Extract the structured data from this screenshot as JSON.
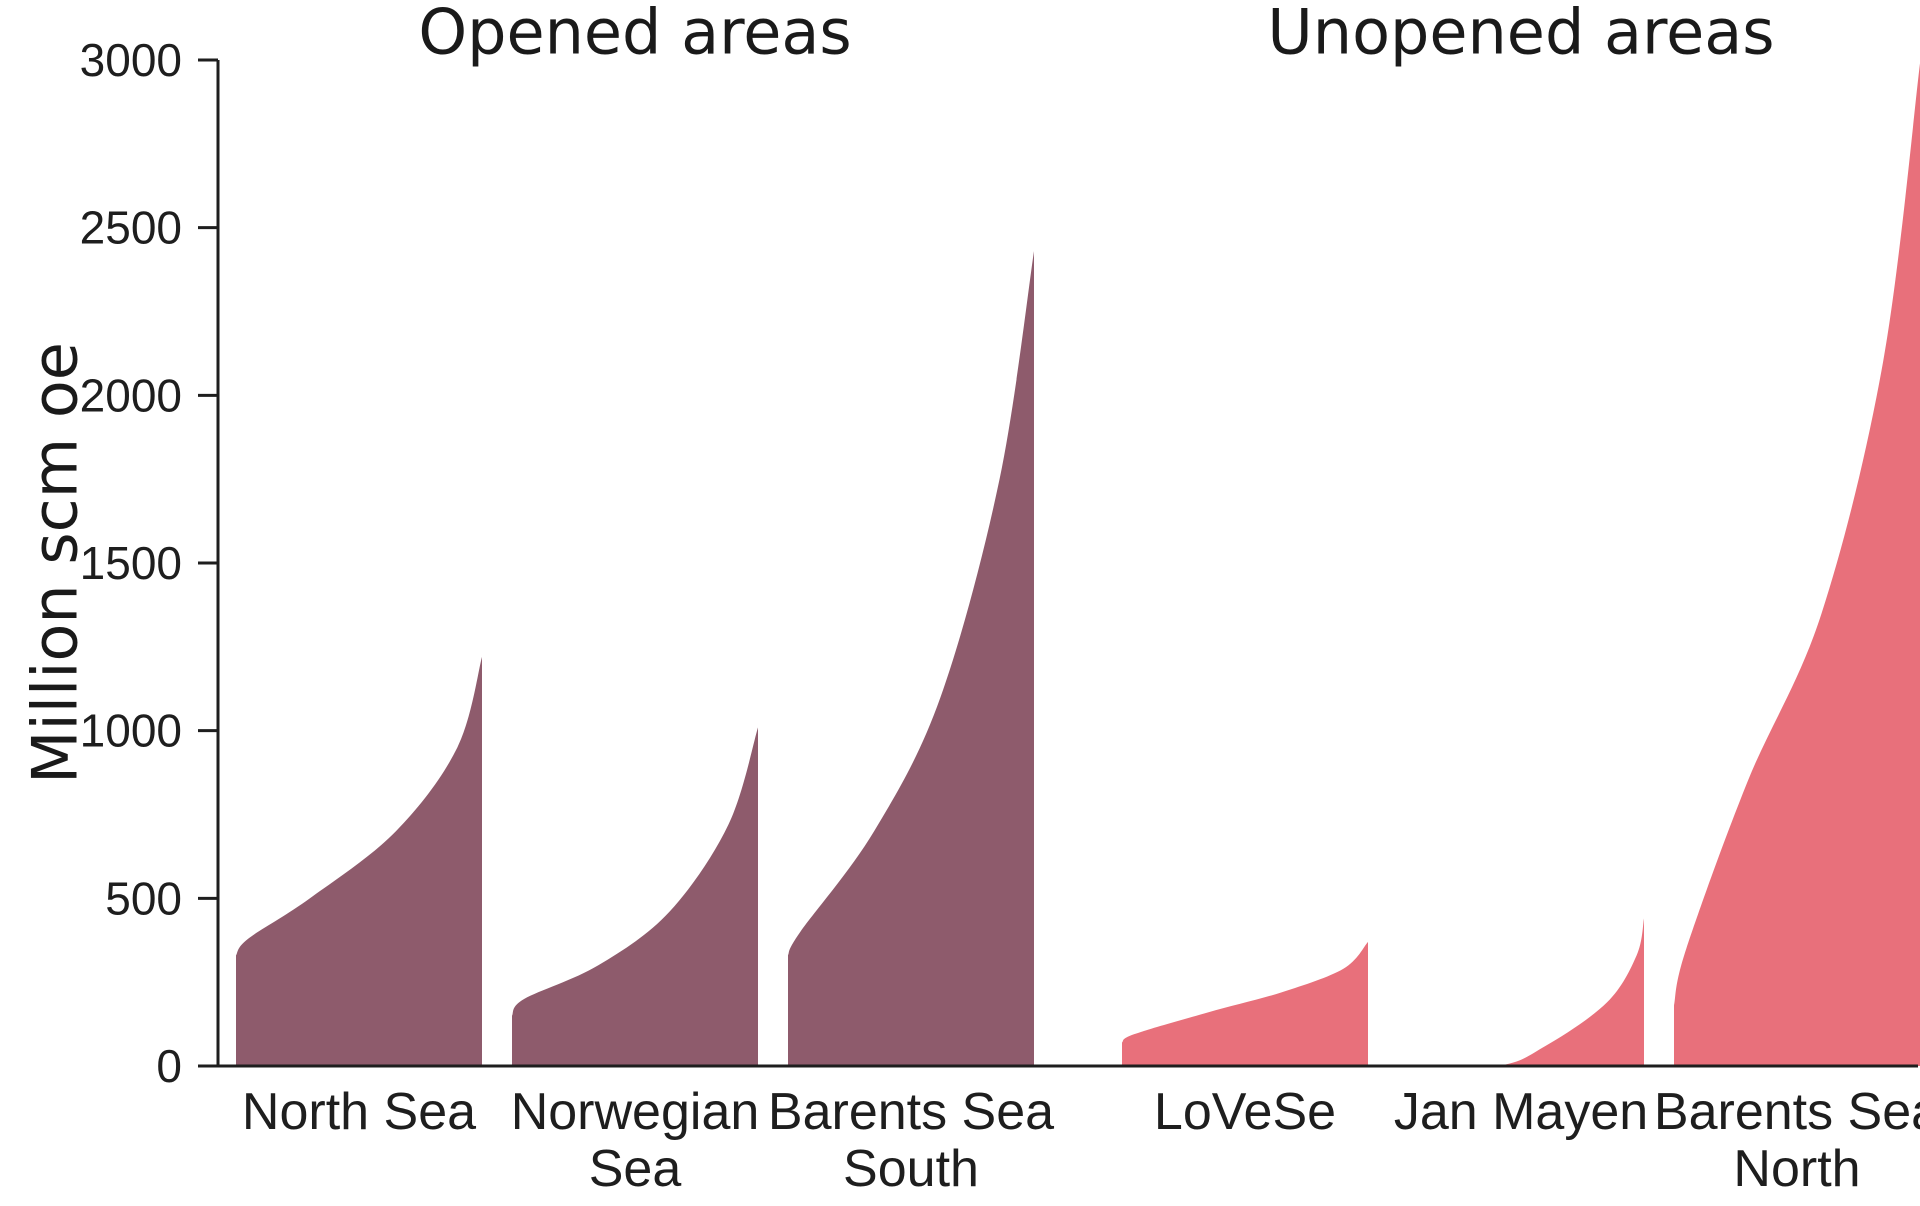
{
  "chart_data": {
    "type": "area",
    "ylabel": "Million scm oe",
    "ylim": [
      0,
      3000
    ],
    "yticks": [
      0,
      500,
      1000,
      1500,
      2000,
      2500,
      3000
    ],
    "groups": [
      {
        "label": "Opened areas",
        "categories": [
          "North Sea",
          "Norwegian Sea",
          "Barents Sea South"
        ]
      },
      {
        "label": "Unopened areas",
        "categories": [
          "LoVeSe",
          "Jan Mayen",
          "Barents Sea North"
        ]
      }
    ],
    "series": [
      {
        "label": [
          "North Sea"
        ],
        "group": "Opened areas",
        "color": "#8e5b6c",
        "min": 330,
        "max": 1220,
        "profile": [
          [
            0,
            330
          ],
          [
            0.05,
            380
          ],
          [
            0.3,
            500
          ],
          [
            0.65,
            700
          ],
          [
            0.9,
            950
          ],
          [
            1,
            1220
          ]
        ]
      },
      {
        "label": [
          "Norwegian",
          "Sea"
        ],
        "group": "Opened areas",
        "color": "#8e5b6c",
        "min": 150,
        "max": 1010,
        "profile": [
          [
            0,
            150
          ],
          [
            0.05,
            200
          ],
          [
            0.35,
            300
          ],
          [
            0.64,
            460
          ],
          [
            0.88,
            720
          ],
          [
            1,
            1010
          ]
        ]
      },
      {
        "label": [
          "Barents Sea",
          "South"
        ],
        "group": "Opened areas",
        "color": "#8e5b6c",
        "min": 330,
        "max": 2430,
        "profile": [
          [
            0,
            330
          ],
          [
            0.05,
            400
          ],
          [
            0.35,
            700
          ],
          [
            0.62,
            1100
          ],
          [
            0.86,
            1750
          ],
          [
            1,
            2430
          ]
        ]
      },
      {
        "label": [
          "LoVeSe"
        ],
        "group": "Unopened areas",
        "color": "#e8707b",
        "min": 70,
        "max": 370,
        "profile": [
          [
            0,
            70
          ],
          [
            0.05,
            95
          ],
          [
            0.35,
            160
          ],
          [
            0.65,
            220
          ],
          [
            0.9,
            290
          ],
          [
            1,
            370
          ]
        ]
      },
      {
        "label": [
          "Jan Mayen"
        ],
        "group": "Unopened areas",
        "color": "#e8707b",
        "min": 0,
        "max": 440,
        "profile": [
          [
            0,
            0
          ],
          [
            0.4,
            0
          ],
          [
            0.6,
            60
          ],
          [
            0.85,
            190
          ],
          [
            0.97,
            330
          ],
          [
            1,
            440
          ]
        ]
      },
      {
        "label": [
          "Barents Sea",
          "North"
        ],
        "group": "Unopened areas",
        "color": "#e8707b",
        "min": 180,
        "max": 2990,
        "profile": [
          [
            0,
            180
          ],
          [
            0.05,
            350
          ],
          [
            0.3,
            850
          ],
          [
            0.6,
            1350
          ],
          [
            0.85,
            2100
          ],
          [
            1,
            2990
          ]
        ]
      }
    ]
  }
}
